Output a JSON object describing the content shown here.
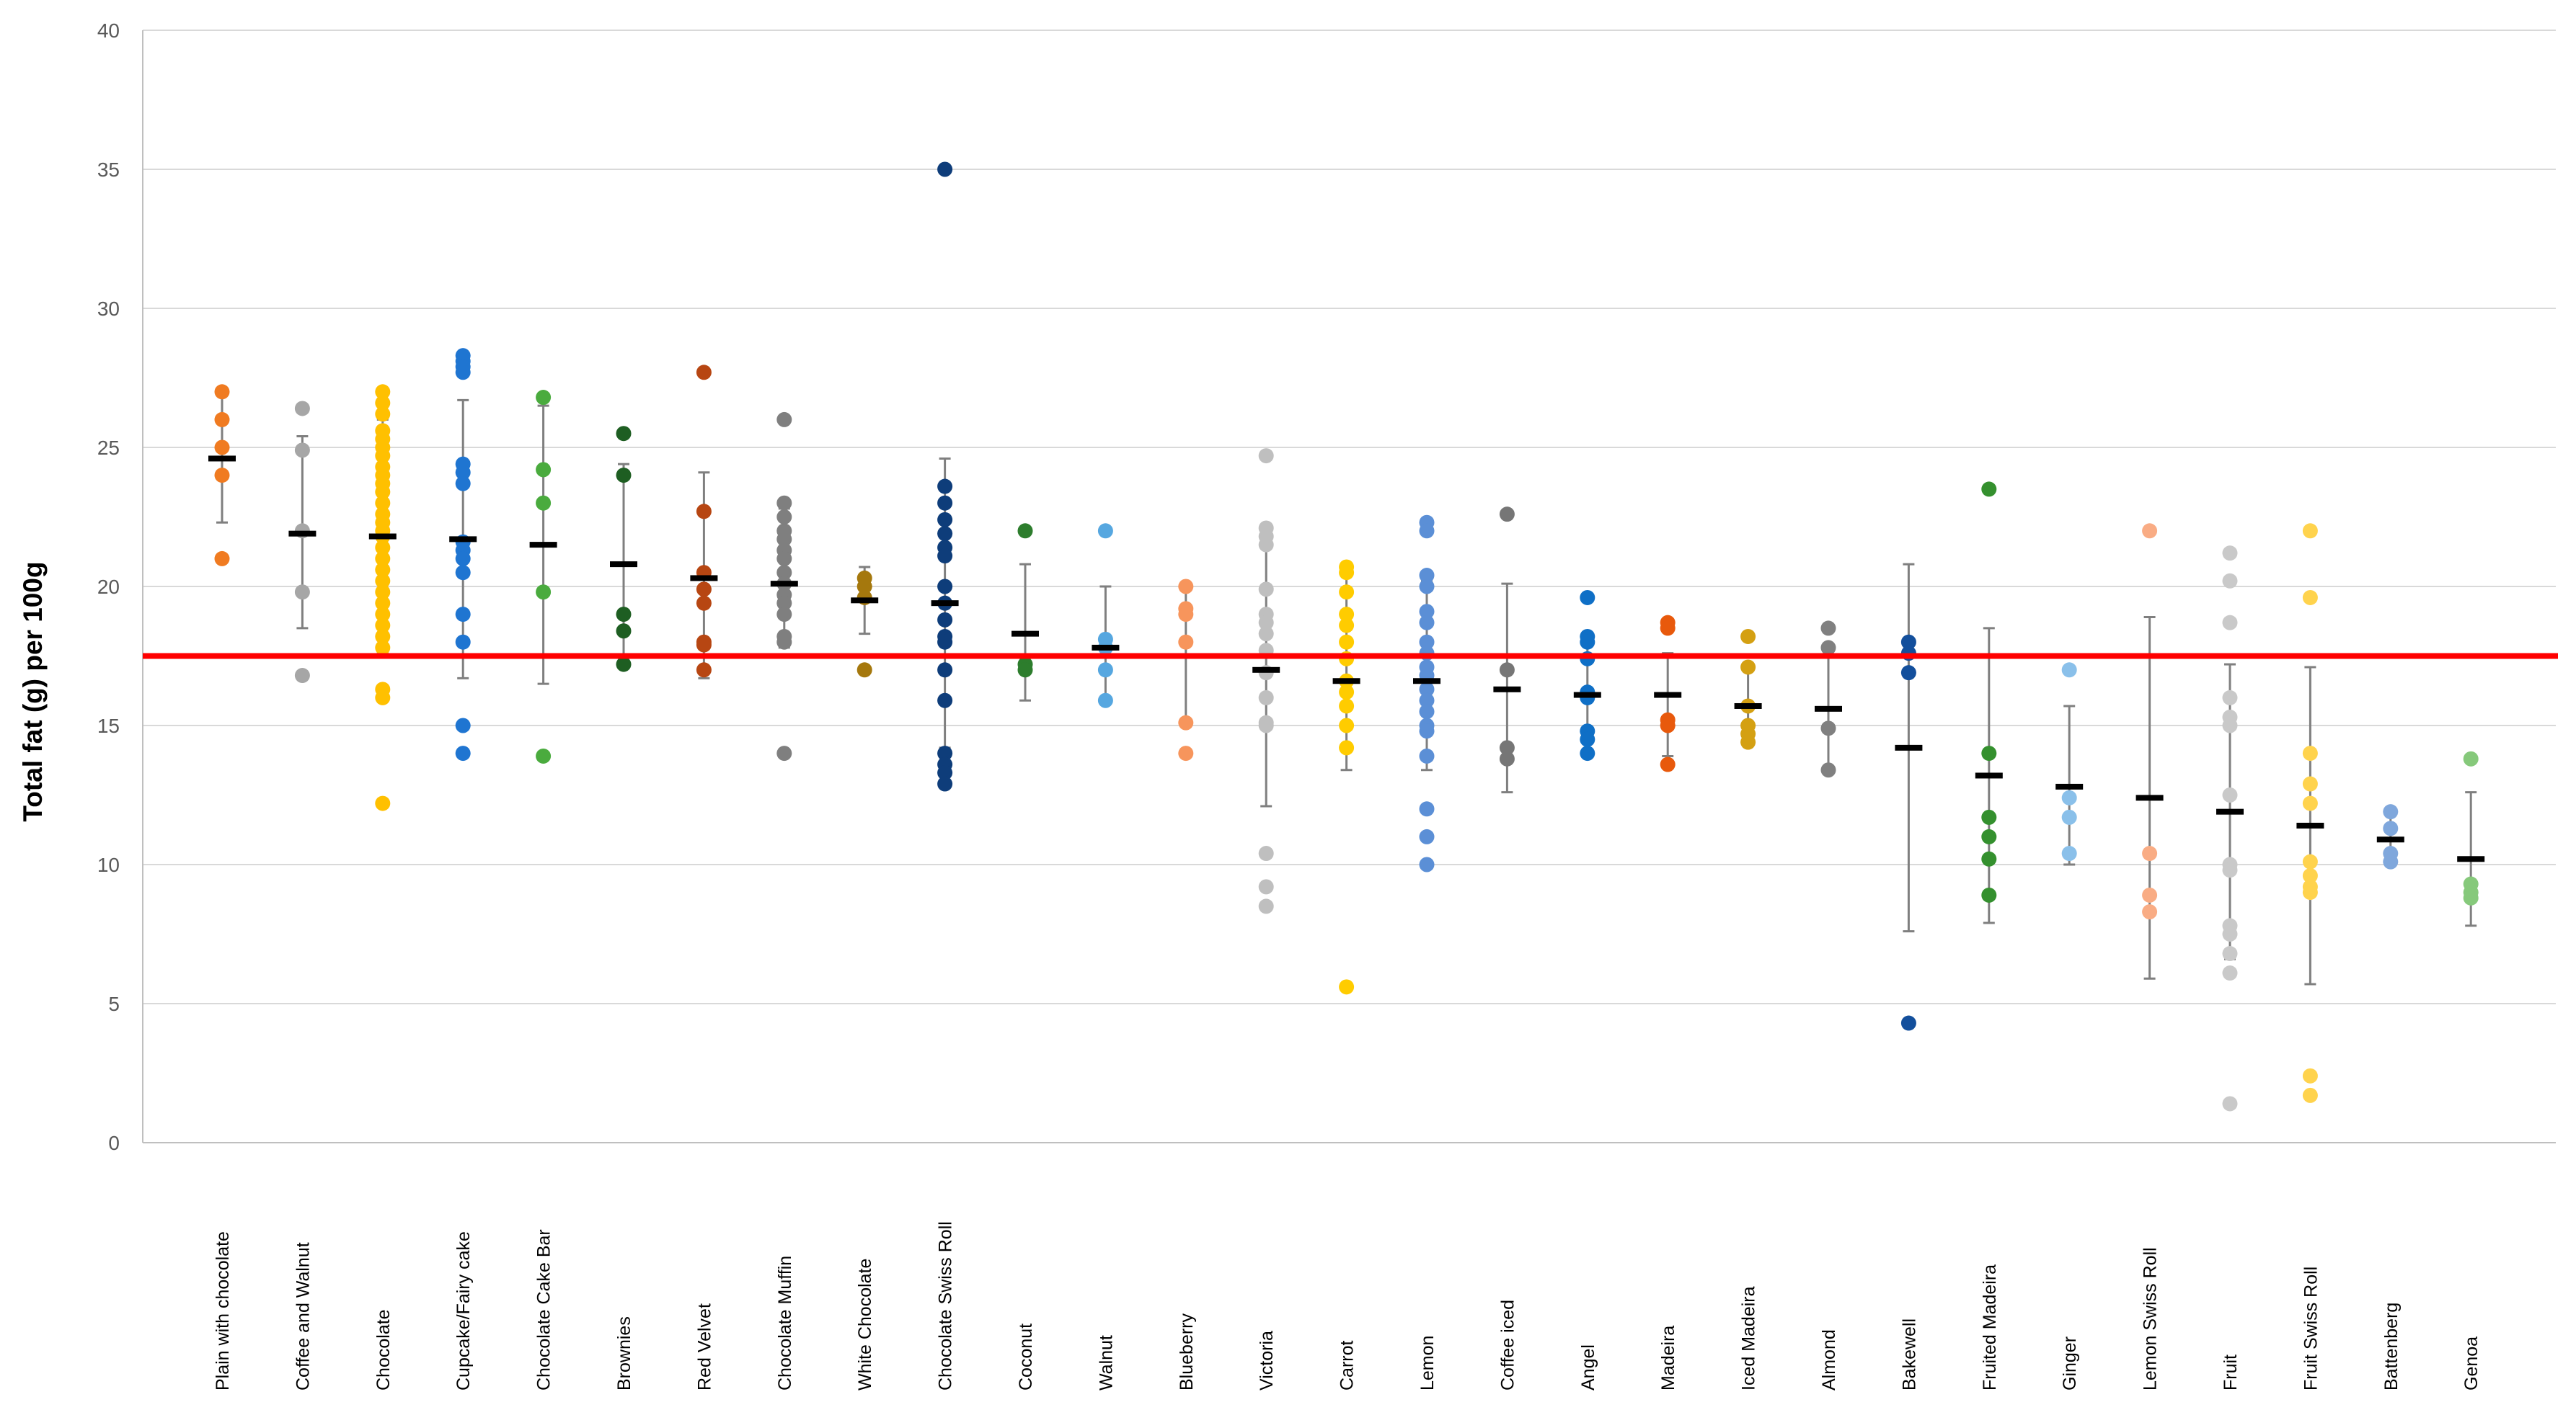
{
  "chart_data": {
    "type": "scatter",
    "title": "",
    "xlabel": "",
    "ylabel": "Total fat (g) per 100g",
    "ylim": [
      0,
      40
    ],
    "yticks": [
      0,
      5,
      10,
      15,
      20,
      25,
      30,
      35,
      40
    ],
    "grid": true,
    "legend": "none",
    "reference_line": {
      "value": 17.5,
      "color": "#ff0000"
    },
    "colors": {
      "mean_marker": "#000000",
      "error_bar": "#7f7f7f",
      "grid": "#d9d9d9",
      "axis": "#bfbfbf"
    },
    "series": [
      {
        "name": "Plain with chocolate",
        "color": "#f07b21",
        "mean": 24.6,
        "err_low": 22.3,
        "err_high": 26.9,
        "values": [
          27.0,
          26.0,
          25.0,
          24.0,
          21.0
        ]
      },
      {
        "name": "Coffee and Walnut",
        "color": "#a6a6a6",
        "mean": 21.9,
        "err_low": 18.5,
        "err_high": 25.4,
        "values": [
          26.4,
          24.9,
          22.0,
          19.8,
          16.8
        ]
      },
      {
        "name": "Chocolate",
        "color": "#ffc000",
        "mean": 21.8,
        "err_low": 17.6,
        "err_high": 26.0,
        "values": [
          27.0,
          26.6,
          26.2,
          25.6,
          25.3,
          25.0,
          24.7,
          24.3,
          24.0,
          23.7,
          23.4,
          23.0,
          22.6,
          22.3,
          22.0,
          21.8,
          21.4,
          21.0,
          20.6,
          20.2,
          19.8,
          19.4,
          19.0,
          18.6,
          18.2,
          17.8,
          16.3,
          16.0,
          12.2
        ]
      },
      {
        "name": "Cupcake/Fairy cake",
        "color": "#1f75d1",
        "mean": 21.7,
        "err_low": 16.7,
        "err_high": 26.7,
        "values": [
          28.3,
          28.1,
          27.9,
          27.7,
          24.4,
          24.1,
          23.7,
          21.6,
          21.3,
          21.0,
          20.5,
          19.0,
          18.0,
          15.0,
          14.0
        ]
      },
      {
        "name": "Chocolate Cake Bar",
        "color": "#4aab3e",
        "mean": 21.5,
        "err_low": 16.5,
        "err_high": 26.5,
        "values": [
          26.8,
          24.2,
          23.0,
          19.8,
          13.9
        ]
      },
      {
        "name": "Brownies",
        "color": "#1e5e22",
        "mean": 20.8,
        "err_low": 17.2,
        "err_high": 24.4,
        "values": [
          25.5,
          24.0,
          19.0,
          18.4,
          17.2
        ]
      },
      {
        "name": "Red Velvet",
        "color": "#b74612",
        "mean": 20.3,
        "err_low": 16.7,
        "err_high": 24.1,
        "values": [
          27.7,
          22.7,
          20.5,
          19.9,
          19.4,
          18.0,
          17.9,
          17.0
        ]
      },
      {
        "name": "Chocolate Muffin",
        "color": "#7f7f7f",
        "mean": 20.1,
        "err_low": 17.8,
        "err_high": 22.8,
        "values": [
          26.0,
          23.0,
          22.5,
          22.0,
          21.7,
          21.3,
          21.0,
          20.5,
          20.1,
          19.7,
          19.4,
          19.0,
          18.2,
          18.0,
          14.0
        ]
      },
      {
        "name": "White Chocolate",
        "color": "#a5780d",
        "mean": 19.5,
        "err_low": 18.3,
        "err_high": 20.7,
        "values": [
          20.3,
          20.0,
          19.6,
          17.0
        ]
      },
      {
        "name": "Chocolate Swiss Roll",
        "color": "#0e3d7a",
        "mean": 19.4,
        "err_low": 14.2,
        "err_high": 24.6,
        "values": [
          35.0,
          23.6,
          23.0,
          22.4,
          21.9,
          21.4,
          21.1,
          20.0,
          19.4,
          18.8,
          18.2,
          18.0,
          17.0,
          15.9,
          14.0,
          13.6,
          13.3,
          12.9
        ]
      },
      {
        "name": "Coconut",
        "color": "#2d7d2d",
        "mean": 18.3,
        "err_low": 15.9,
        "err_high": 20.8,
        "values": [
          22.0,
          17.2,
          17.0
        ]
      },
      {
        "name": "Walnut",
        "color": "#56a7e0",
        "mean": 17.8,
        "err_low": 16.0,
        "err_high": 20.0,
        "values": [
          22.0,
          18.1,
          17.8,
          17.0,
          15.9
        ]
      },
      {
        "name": "Blueberry",
        "color": "#f7955c",
        "mean": 17.5,
        "err_low": 15.0,
        "err_high": 20.0,
        "values": [
          20.0,
          19.2,
          19.0,
          18.0,
          15.1,
          14.0
        ]
      },
      {
        "name": "Victoria",
        "color": "#bfbfbf",
        "mean": 17.0,
        "err_low": 12.1,
        "err_high": 21.9,
        "values": [
          24.7,
          22.1,
          21.8,
          21.5,
          19.9,
          19.0,
          18.7,
          18.3,
          17.7,
          16.9,
          16.0,
          15.1,
          15.0,
          10.4,
          9.2,
          8.5
        ]
      },
      {
        "name": "Carrot",
        "color": "#ffcc00",
        "mean": 16.6,
        "err_low": 13.4,
        "err_high": 20.5,
        "values": [
          20.7,
          20.5,
          19.8,
          19.0,
          18.6,
          18.0,
          17.4,
          16.6,
          16.2,
          15.7,
          15.0,
          14.2,
          5.6
        ]
      },
      {
        "name": "Lemon",
        "color": "#5b8fd6",
        "mean": 16.6,
        "err_low": 13.4,
        "err_high": 20.2,
        "values": [
          22.3,
          22.0,
          20.4,
          20.0,
          19.1,
          18.7,
          18.0,
          17.6,
          17.1,
          16.8,
          16.3,
          15.9,
          15.5,
          15.0,
          14.8,
          13.9,
          12.0,
          11.0,
          10.0
        ]
      },
      {
        "name": "Coffee iced",
        "color": "#767676",
        "mean": 16.3,
        "err_low": 12.6,
        "err_high": 20.1,
        "values": [
          22.6,
          17.0,
          14.2,
          13.8
        ]
      },
      {
        "name": "Angel",
        "color": "#0f6fc6",
        "mean": 16.1,
        "err_low": 14.1,
        "err_high": 18.2,
        "values": [
          19.6,
          18.2,
          18.0,
          17.4,
          16.2,
          16.0,
          14.8,
          14.5,
          14.0
        ]
      },
      {
        "name": "Madeira",
        "color": "#e8590c",
        "mean": 16.1,
        "err_low": 13.9,
        "err_high": 17.6,
        "values": [
          18.7,
          18.5,
          15.2,
          15.0,
          13.6
        ]
      },
      {
        "name": "Iced Madeira",
        "color": "#d4a012",
        "mean": 15.7,
        "err_low": 14.7,
        "err_high": 17.0,
        "values": [
          18.2,
          17.1,
          15.7,
          15.0,
          14.7,
          14.4
        ]
      },
      {
        "name": "Almond",
        "color": "#808080",
        "mean": 15.6,
        "err_low": 13.3,
        "err_high": 17.7,
        "values": [
          18.5,
          17.8,
          14.9,
          13.4
        ]
      },
      {
        "name": "Bakewell",
        "color": "#134f9c",
        "mean": 14.2,
        "err_low": 7.6,
        "err_high": 20.8,
        "values": [
          18.0,
          17.6,
          16.9,
          4.3
        ]
      },
      {
        "name": "Fruited Madeira",
        "color": "#34902e",
        "mean": 13.2,
        "err_low": 7.9,
        "err_high": 18.5,
        "values": [
          23.5,
          14.0,
          11.7,
          11.0,
          10.2,
          8.9
        ]
      },
      {
        "name": "Ginger",
        "color": "#8ac0ea",
        "mean": 12.8,
        "err_low": 10.0,
        "err_high": 15.7,
        "values": [
          17.0,
          12.4,
          11.7,
          10.4
        ]
      },
      {
        "name": "Lemon Swiss Roll",
        "color": "#f9ac84",
        "mean": 12.4,
        "err_low": 5.9,
        "err_high": 18.9,
        "values": [
          22.0,
          10.4,
          8.9,
          8.3
        ]
      },
      {
        "name": "Fruit",
        "color": "#c9c9c9",
        "mean": 11.9,
        "err_low": 6.6,
        "err_high": 17.2,
        "values": [
          21.2,
          20.2,
          18.7,
          16.0,
          15.3,
          15.0,
          12.5,
          10.0,
          9.8,
          7.8,
          7.5,
          6.8,
          6.1,
          1.4
        ]
      },
      {
        "name": "Fruit Swiss Roll",
        "color": "#ffd34d",
        "mean": 11.4,
        "err_low": 5.7,
        "err_high": 17.1,
        "values": [
          22.0,
          19.6,
          14.0,
          12.9,
          12.2,
          10.1,
          9.6,
          9.2,
          9.0,
          2.4,
          1.7
        ]
      },
      {
        "name": "Battenberg",
        "color": "#7fa7dc",
        "mean": 10.9,
        "err_low": 10.0,
        "err_high": 11.8,
        "values": [
          11.9,
          11.3,
          10.4,
          10.1
        ]
      },
      {
        "name": "Genoa",
        "color": "#86c97b",
        "mean": 10.2,
        "err_low": 7.8,
        "err_high": 12.6,
        "values": [
          13.8,
          9.3,
          9.0,
          8.8
        ]
      }
    ]
  }
}
